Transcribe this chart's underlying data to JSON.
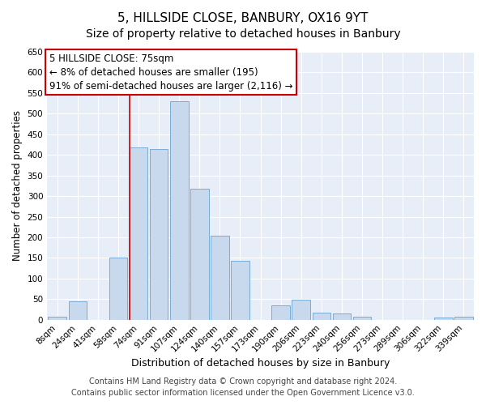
{
  "title": "5, HILLSIDE CLOSE, BANBURY, OX16 9YT",
  "subtitle": "Size of property relative to detached houses in Banbury",
  "xlabel": "Distribution of detached houses by size in Banbury",
  "ylabel": "Number of detached properties",
  "categories": [
    "8sqm",
    "24sqm",
    "41sqm",
    "58sqm",
    "74sqm",
    "91sqm",
    "107sqm",
    "124sqm",
    "140sqm",
    "157sqm",
    "173sqm",
    "190sqm",
    "206sqm",
    "223sqm",
    "240sqm",
    "256sqm",
    "273sqm",
    "289sqm",
    "306sqm",
    "322sqm",
    "339sqm"
  ],
  "values": [
    8,
    45,
    0,
    150,
    418,
    415,
    530,
    317,
    203,
    143,
    0,
    35,
    48,
    18,
    15,
    7,
    0,
    0,
    0,
    5,
    7
  ],
  "bar_color": "#c8d9ee",
  "bar_edgecolor": "#7aacd6",
  "annotation_box_text": "5 HILLSIDE CLOSE: 75sqm\n← 8% of detached houses are smaller (195)\n91% of semi-detached houses are larger (2,116) →",
  "annotation_box_color": "#ffffff",
  "annotation_box_edgecolor": "#cc0000",
  "property_bar_index": 4,
  "vline_color": "#cc0000",
  "ylim": [
    0,
    650
  ],
  "yticks": [
    0,
    50,
    100,
    150,
    200,
    250,
    300,
    350,
    400,
    450,
    500,
    550,
    600,
    650
  ],
  "bg_color": "#e8eef8",
  "grid_color": "#ffffff",
  "footer1": "Contains HM Land Registry data © Crown copyright and database right 2024.",
  "footer2": "Contains public sector information licensed under the Open Government Licence v3.0.",
  "title_fontsize": 11,
  "xlabel_fontsize": 9,
  "ylabel_fontsize": 8.5,
  "tick_fontsize": 7.5,
  "annotation_fontsize": 8.5,
  "footer_fontsize": 7
}
